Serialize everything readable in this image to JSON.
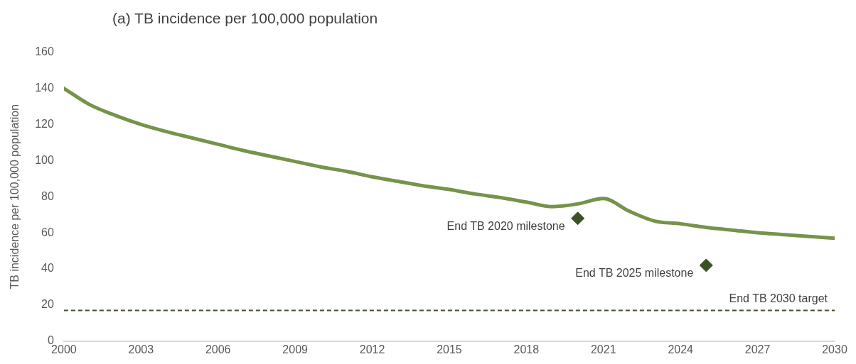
{
  "chart_data": {
    "type": "line",
    "title": "(a) TB incidence per 100,000 population",
    "ylabel": "TB incidence per 100,000 population",
    "x": [
      2000,
      2001,
      2002,
      2003,
      2004,
      2005,
      2006,
      2007,
      2008,
      2009,
      2010,
      2011,
      2012,
      2013,
      2014,
      2015,
      2016,
      2017,
      2018,
      2019,
      2020,
      2021,
      2022,
      2023,
      2024,
      2025,
      2026,
      2027,
      2028,
      2029,
      2030
    ],
    "series": [
      {
        "color": "#76934a",
        "values": [
          140,
          131,
          125,
          120,
          116,
          112.5,
          109,
          105.5,
          102.5,
          99.5,
          96.5,
          94,
          91,
          88.5,
          86,
          84,
          81.5,
          79.5,
          77,
          74.5,
          76,
          79,
          72,
          66.5,
          65,
          63,
          61.5,
          60,
          59,
          58,
          57
        ]
      },
      {
        "type": "scatter",
        "color": "#3d5127",
        "marker": "diamond",
        "x": [
          2020,
          2025
        ],
        "values": [
          68,
          42
        ]
      }
    ],
    "annotations": [
      {
        "text": "End TB 2020 milestone",
        "x": 2020,
        "y": 68
      },
      {
        "text": "End TB 2025 milestone",
        "x": 2025,
        "y": 42
      }
    ],
    "ref_lines": [
      {
        "axis": "y",
        "value": 17,
        "label": "End TB 2030 target",
        "color": "#3d5127",
        "line_style": "dashed"
      }
    ],
    "xlim": [
      2000,
      2030
    ],
    "xticks": [
      2000,
      2003,
      2006,
      2009,
      2012,
      2015,
      2018,
      2021,
      2024,
      2027,
      2030
    ],
    "ylim": [
      0,
      160
    ],
    "yticks": [
      0,
      20,
      40,
      60,
      80,
      100,
      120,
      140,
      160
    ],
    "grid": false,
    "legend": false
  }
}
